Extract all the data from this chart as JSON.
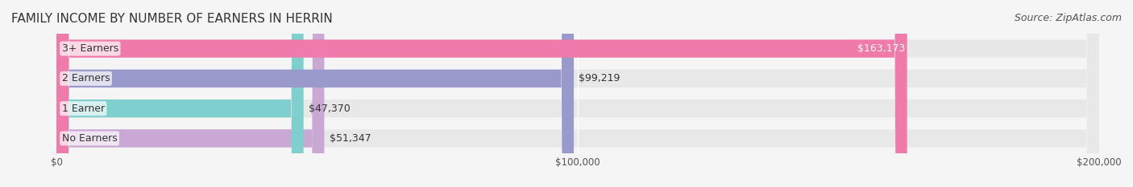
{
  "title": "FAMILY INCOME BY NUMBER OF EARNERS IN HERRIN",
  "source": "Source: ZipAtlas.com",
  "categories": [
    "No Earners",
    "1 Earner",
    "2 Earners",
    "3+ Earners"
  ],
  "values": [
    51347,
    47370,
    99219,
    163173
  ],
  "bar_colors": [
    "#c9a8d4",
    "#7fcfcf",
    "#9999cc",
    "#f07aaa"
  ],
  "bar_bg_color": "#e8e8e8",
  "label_colors": [
    "#555555",
    "#555555",
    "#555555",
    "#ffffff"
  ],
  "value_labels": [
    "$51,347",
    "$47,370",
    "$99,219",
    "$163,173"
  ],
  "xlim": [
    0,
    200000
  ],
  "xticks": [
    0,
    100000,
    200000
  ],
  "xtick_labels": [
    "$0",
    "$100,000",
    "$200,000"
  ],
  "title_fontsize": 11,
  "source_fontsize": 9,
  "bar_label_fontsize": 9,
  "value_label_fontsize": 9,
  "background_color": "#f5f5f5",
  "bar_bg_alpha": 1.0,
  "bar_height": 0.6,
  "bar_bg_rounding": 0.3
}
